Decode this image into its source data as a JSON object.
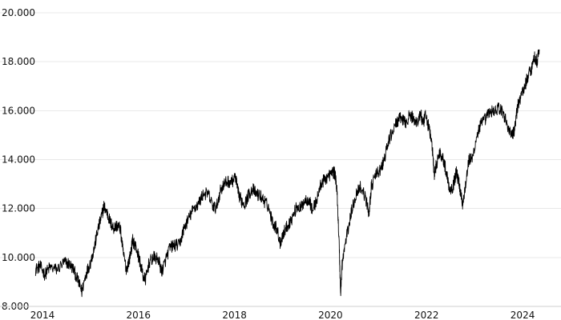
{
  "chart_data": {
    "type": "line",
    "title": "",
    "xlabel": "",
    "ylabel": "",
    "xlim": [
      2013.85,
      2024.8
    ],
    "ylim": [
      8000,
      20000
    ],
    "grid": true,
    "legend": "none",
    "line_color": "#000000",
    "y_ticks": [
      {
        "value": 8000,
        "label": "8.000"
      },
      {
        "value": 10000,
        "label": "10.000"
      },
      {
        "value": 12000,
        "label": "12.000"
      },
      {
        "value": 14000,
        "label": "14.000"
      },
      {
        "value": 16000,
        "label": "16.000"
      },
      {
        "value": 18000,
        "label": "18.000"
      },
      {
        "value": 20000,
        "label": "20.000"
      }
    ],
    "x_ticks": [
      {
        "value": 2014,
        "label": "2014"
      },
      {
        "value": 2016,
        "label": "2016"
      },
      {
        "value": 2018,
        "label": "2018"
      },
      {
        "value": 2020,
        "label": "2020"
      },
      {
        "value": 2022,
        "label": "2022"
      },
      {
        "value": 2024,
        "label": "2024"
      }
    ],
    "series": [
      {
        "values": [
          [
            2013.85,
            9500
          ],
          [
            2013.95,
            9650
          ],
          [
            2014.05,
            9300
          ],
          [
            2014.15,
            9600
          ],
          [
            2014.3,
            9500
          ],
          [
            2014.45,
            9800
          ],
          [
            2014.55,
            9750
          ],
          [
            2014.65,
            9500
          ],
          [
            2014.75,
            9000
          ],
          [
            2014.82,
            8600
          ],
          [
            2014.9,
            9300
          ],
          [
            2015.0,
            9800
          ],
          [
            2015.08,
            10400
          ],
          [
            2015.15,
            11100
          ],
          [
            2015.22,
            11600
          ],
          [
            2015.28,
            12100
          ],
          [
            2015.35,
            11800
          ],
          [
            2015.42,
            11400
          ],
          [
            2015.48,
            11200
          ],
          [
            2015.55,
            11300
          ],
          [
            2015.62,
            11200
          ],
          [
            2015.68,
            10200
          ],
          [
            2015.75,
            9500
          ],
          [
            2015.82,
            10000
          ],
          [
            2015.88,
            10700
          ],
          [
            2015.95,
            10400
          ],
          [
            2016.02,
            9900
          ],
          [
            2016.1,
            9200
          ],
          [
            2016.15,
            9100
          ],
          [
            2016.22,
            9800
          ],
          [
            2016.32,
            10000
          ],
          [
            2016.42,
            9900
          ],
          [
            2016.48,
            9400
          ],
          [
            2016.55,
            9800
          ],
          [
            2016.65,
            10400
          ],
          [
            2016.75,
            10500
          ],
          [
            2016.85,
            10500
          ],
          [
            2016.95,
            11200
          ],
          [
            2017.05,
            11600
          ],
          [
            2017.15,
            12000
          ],
          [
            2017.25,
            12200
          ],
          [
            2017.35,
            12600
          ],
          [
            2017.45,
            12600
          ],
          [
            2017.55,
            12100
          ],
          [
            2017.62,
            12000
          ],
          [
            2017.7,
            12700
          ],
          [
            2017.78,
            13000
          ],
          [
            2017.85,
            13100
          ],
          [
            2017.95,
            13100
          ],
          [
            2018.02,
            13300
          ],
          [
            2018.08,
            12600
          ],
          [
            2018.15,
            12300
          ],
          [
            2018.22,
            12200
          ],
          [
            2018.3,
            12600
          ],
          [
            2018.38,
            12800
          ],
          [
            2018.45,
            12600
          ],
          [
            2018.55,
            12500
          ],
          [
            2018.62,
            12300
          ],
          [
            2018.7,
            12100
          ],
          [
            2018.8,
            11400
          ],
          [
            2018.88,
            11200
          ],
          [
            2018.95,
            10600
          ],
          [
            2019.02,
            11000
          ],
          [
            2019.1,
            11300
          ],
          [
            2019.2,
            11600
          ],
          [
            2019.3,
            12100
          ],
          [
            2019.38,
            12000
          ],
          [
            2019.45,
            12300
          ],
          [
            2019.55,
            12400
          ],
          [
            2019.62,
            11900
          ],
          [
            2019.72,
            12400
          ],
          [
            2019.8,
            13000
          ],
          [
            2019.88,
            13200
          ],
          [
            2019.95,
            13300
          ],
          [
            2020.05,
            13500
          ],
          [
            2020.1,
            13400
          ],
          [
            2020.14,
            12500
          ],
          [
            2020.18,
            10500
          ],
          [
            2020.21,
            8500
          ],
          [
            2020.24,
            9700
          ],
          [
            2020.3,
            10500
          ],
          [
            2020.38,
            11300
          ],
          [
            2020.45,
            12000
          ],
          [
            2020.55,
            12700
          ],
          [
            2020.62,
            12900
          ],
          [
            2020.72,
            12500
          ],
          [
            2020.8,
            11800
          ],
          [
            2020.85,
            12900
          ],
          [
            2020.95,
            13400
          ],
          [
            2021.05,
            13600
          ],
          [
            2021.12,
            14000
          ],
          [
            2021.2,
            14700
          ],
          [
            2021.3,
            15200
          ],
          [
            2021.4,
            15600
          ],
          [
            2021.48,
            15700
          ],
          [
            2021.55,
            15500
          ],
          [
            2021.65,
            15800
          ],
          [
            2021.72,
            15700
          ],
          [
            2021.8,
            15500
          ],
          [
            2021.88,
            15900
          ],
          [
            2021.92,
            15400
          ],
          [
            2021.98,
            15800
          ],
          [
            2022.05,
            15300
          ],
          [
            2022.12,
            14500
          ],
          [
            2022.16,
            13300
          ],
          [
            2022.2,
            13800
          ],
          [
            2022.28,
            14300
          ],
          [
            2022.35,
            14000
          ],
          [
            2022.42,
            13400
          ],
          [
            2022.48,
            12800
          ],
          [
            2022.55,
            12900
          ],
          [
            2022.62,
            13500
          ],
          [
            2022.68,
            13000
          ],
          [
            2022.75,
            12200
          ],
          [
            2022.8,
            12800
          ],
          [
            2022.88,
            14000
          ],
          [
            2022.95,
            14000
          ],
          [
            2023.05,
            15000
          ],
          [
            2023.12,
            15400
          ],
          [
            2023.2,
            15600
          ],
          [
            2023.3,
            15900
          ],
          [
            2023.4,
            16000
          ],
          [
            2023.5,
            16100
          ],
          [
            2023.6,
            15900
          ],
          [
            2023.7,
            15300
          ],
          [
            2023.78,
            15000
          ],
          [
            2023.82,
            15100
          ],
          [
            2023.9,
            16200
          ],
          [
            2023.98,
            16700
          ],
          [
            2024.05,
            17000
          ],
          [
            2024.12,
            17500
          ],
          [
            2024.18,
            17700
          ],
          [
            2024.25,
            18200
          ],
          [
            2024.3,
            18000
          ],
          [
            2024.35,
            18500
          ]
        ]
      }
    ]
  }
}
